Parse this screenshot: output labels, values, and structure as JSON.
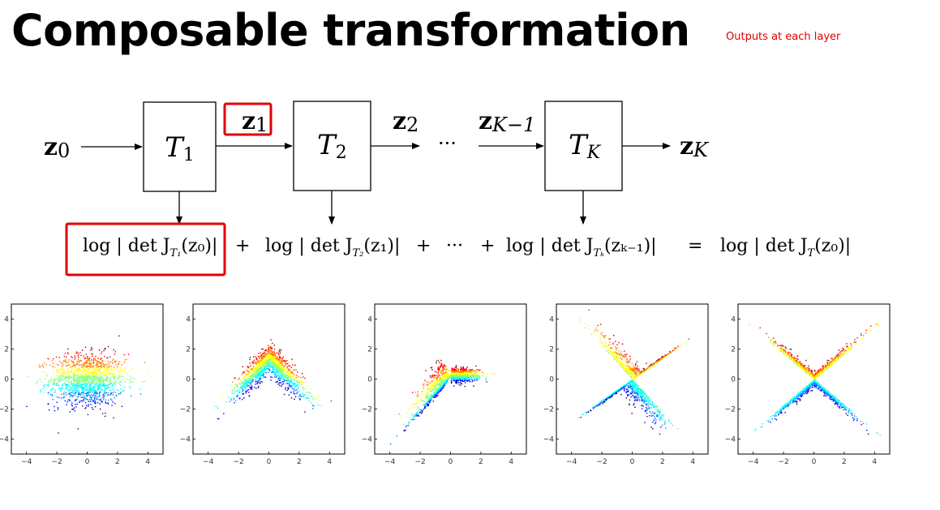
{
  "title": "Composable transformation",
  "annotation": "Outputs at each layer",
  "flow": {
    "inputs": [
      {
        "base": "z",
        "sub": "0"
      },
      {
        "base": "z",
        "sub": "1"
      },
      {
        "base": "z",
        "sub": "2"
      },
      {
        "base": "z",
        "sub": "K−1"
      },
      {
        "base": "z",
        "sub": "K"
      }
    ],
    "ellipsis": "···",
    "blocks": [
      {
        "base": "T",
        "sub": "1"
      },
      {
        "base": "T",
        "sub": "2"
      },
      {
        "base": "T",
        "sub": "K"
      }
    ]
  },
  "equation": {
    "terms": [
      {
        "prefix": "log | det J",
        "sub": "T₁",
        "arg": "(z₀)|"
      },
      {
        "prefix": "log | det J",
        "sub": "T₂",
        "arg": "(z₁)|"
      },
      {
        "prefix": "log | det J",
        "sub": "Tₖ",
        "arg": "(zₖ₋₁)|"
      },
      {
        "prefix": "log | det J",
        "sub": "T",
        "arg": "(z₀)|"
      }
    ],
    "plus": "+",
    "ellipsis": "···",
    "equals": "="
  },
  "plots": {
    "tick_labels": [
      "−4",
      "−2",
      "0",
      "2",
      "4"
    ],
    "tick_values": [
      -4,
      -2,
      0,
      2,
      4
    ],
    "xlim": [
      -5,
      5
    ],
    "ylim": [
      -5,
      5
    ],
    "count": 5,
    "colormap": [
      "#00007f",
      "#0000ff",
      "#007fff",
      "#00ffff",
      "#7fff7f",
      "#ffff00",
      "#ff7f00",
      "#ff0000",
      "#7f0000"
    ],
    "highlight_color": "#e00000"
  }
}
